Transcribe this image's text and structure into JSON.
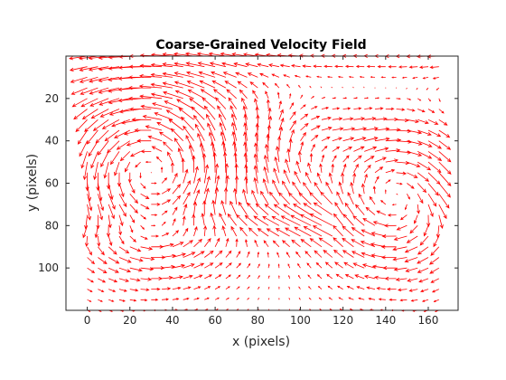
{
  "chart_data": {
    "type": "quiver",
    "title": "Coarse-Grained Velocity Field",
    "xlabel": "x (pixels)",
    "ylabel": "y (pixels)",
    "xlim": [
      -10,
      174
    ],
    "ylim": [
      0,
      120
    ],
    "y_axis_direction": "reversed",
    "xticks": [
      0,
      20,
      40,
      60,
      80,
      100,
      120,
      140,
      160
    ],
    "yticks": [
      20,
      40,
      60,
      80,
      100
    ],
    "grid": false,
    "legend": "none",
    "arrow_color": "#ff0000",
    "grid_spacing": 5,
    "x_range": [
      0,
      165
    ],
    "y_range": [
      0,
      120
    ],
    "flow_features": [
      {
        "kind": "shear_band",
        "y_range": [
          0,
          30
        ],
        "direction": "left",
        "speed": 6.5
      },
      {
        "kind": "vortex",
        "center": [
          30,
          55
        ],
        "radius": 28,
        "sense": "clockwise",
        "peak_speed": 9
      },
      {
        "kind": "vortex",
        "center": [
          100,
          45
        ],
        "radius": 18,
        "sense": "counterclockwise",
        "peak_speed": 3.5
      },
      {
        "kind": "vortex",
        "center": [
          145,
          65
        ],
        "radius": 25,
        "sense": "counterclockwise",
        "peak_speed": 7.5
      },
      {
        "kind": "jet",
        "y_range": [
          70,
          90
        ],
        "x_range": [
          0,
          115
        ],
        "direction": "left",
        "speed": 7
      },
      {
        "kind": "outflow",
        "location": [
          170,
          70
        ],
        "direction": "right",
        "speed": 6
      }
    ]
  }
}
